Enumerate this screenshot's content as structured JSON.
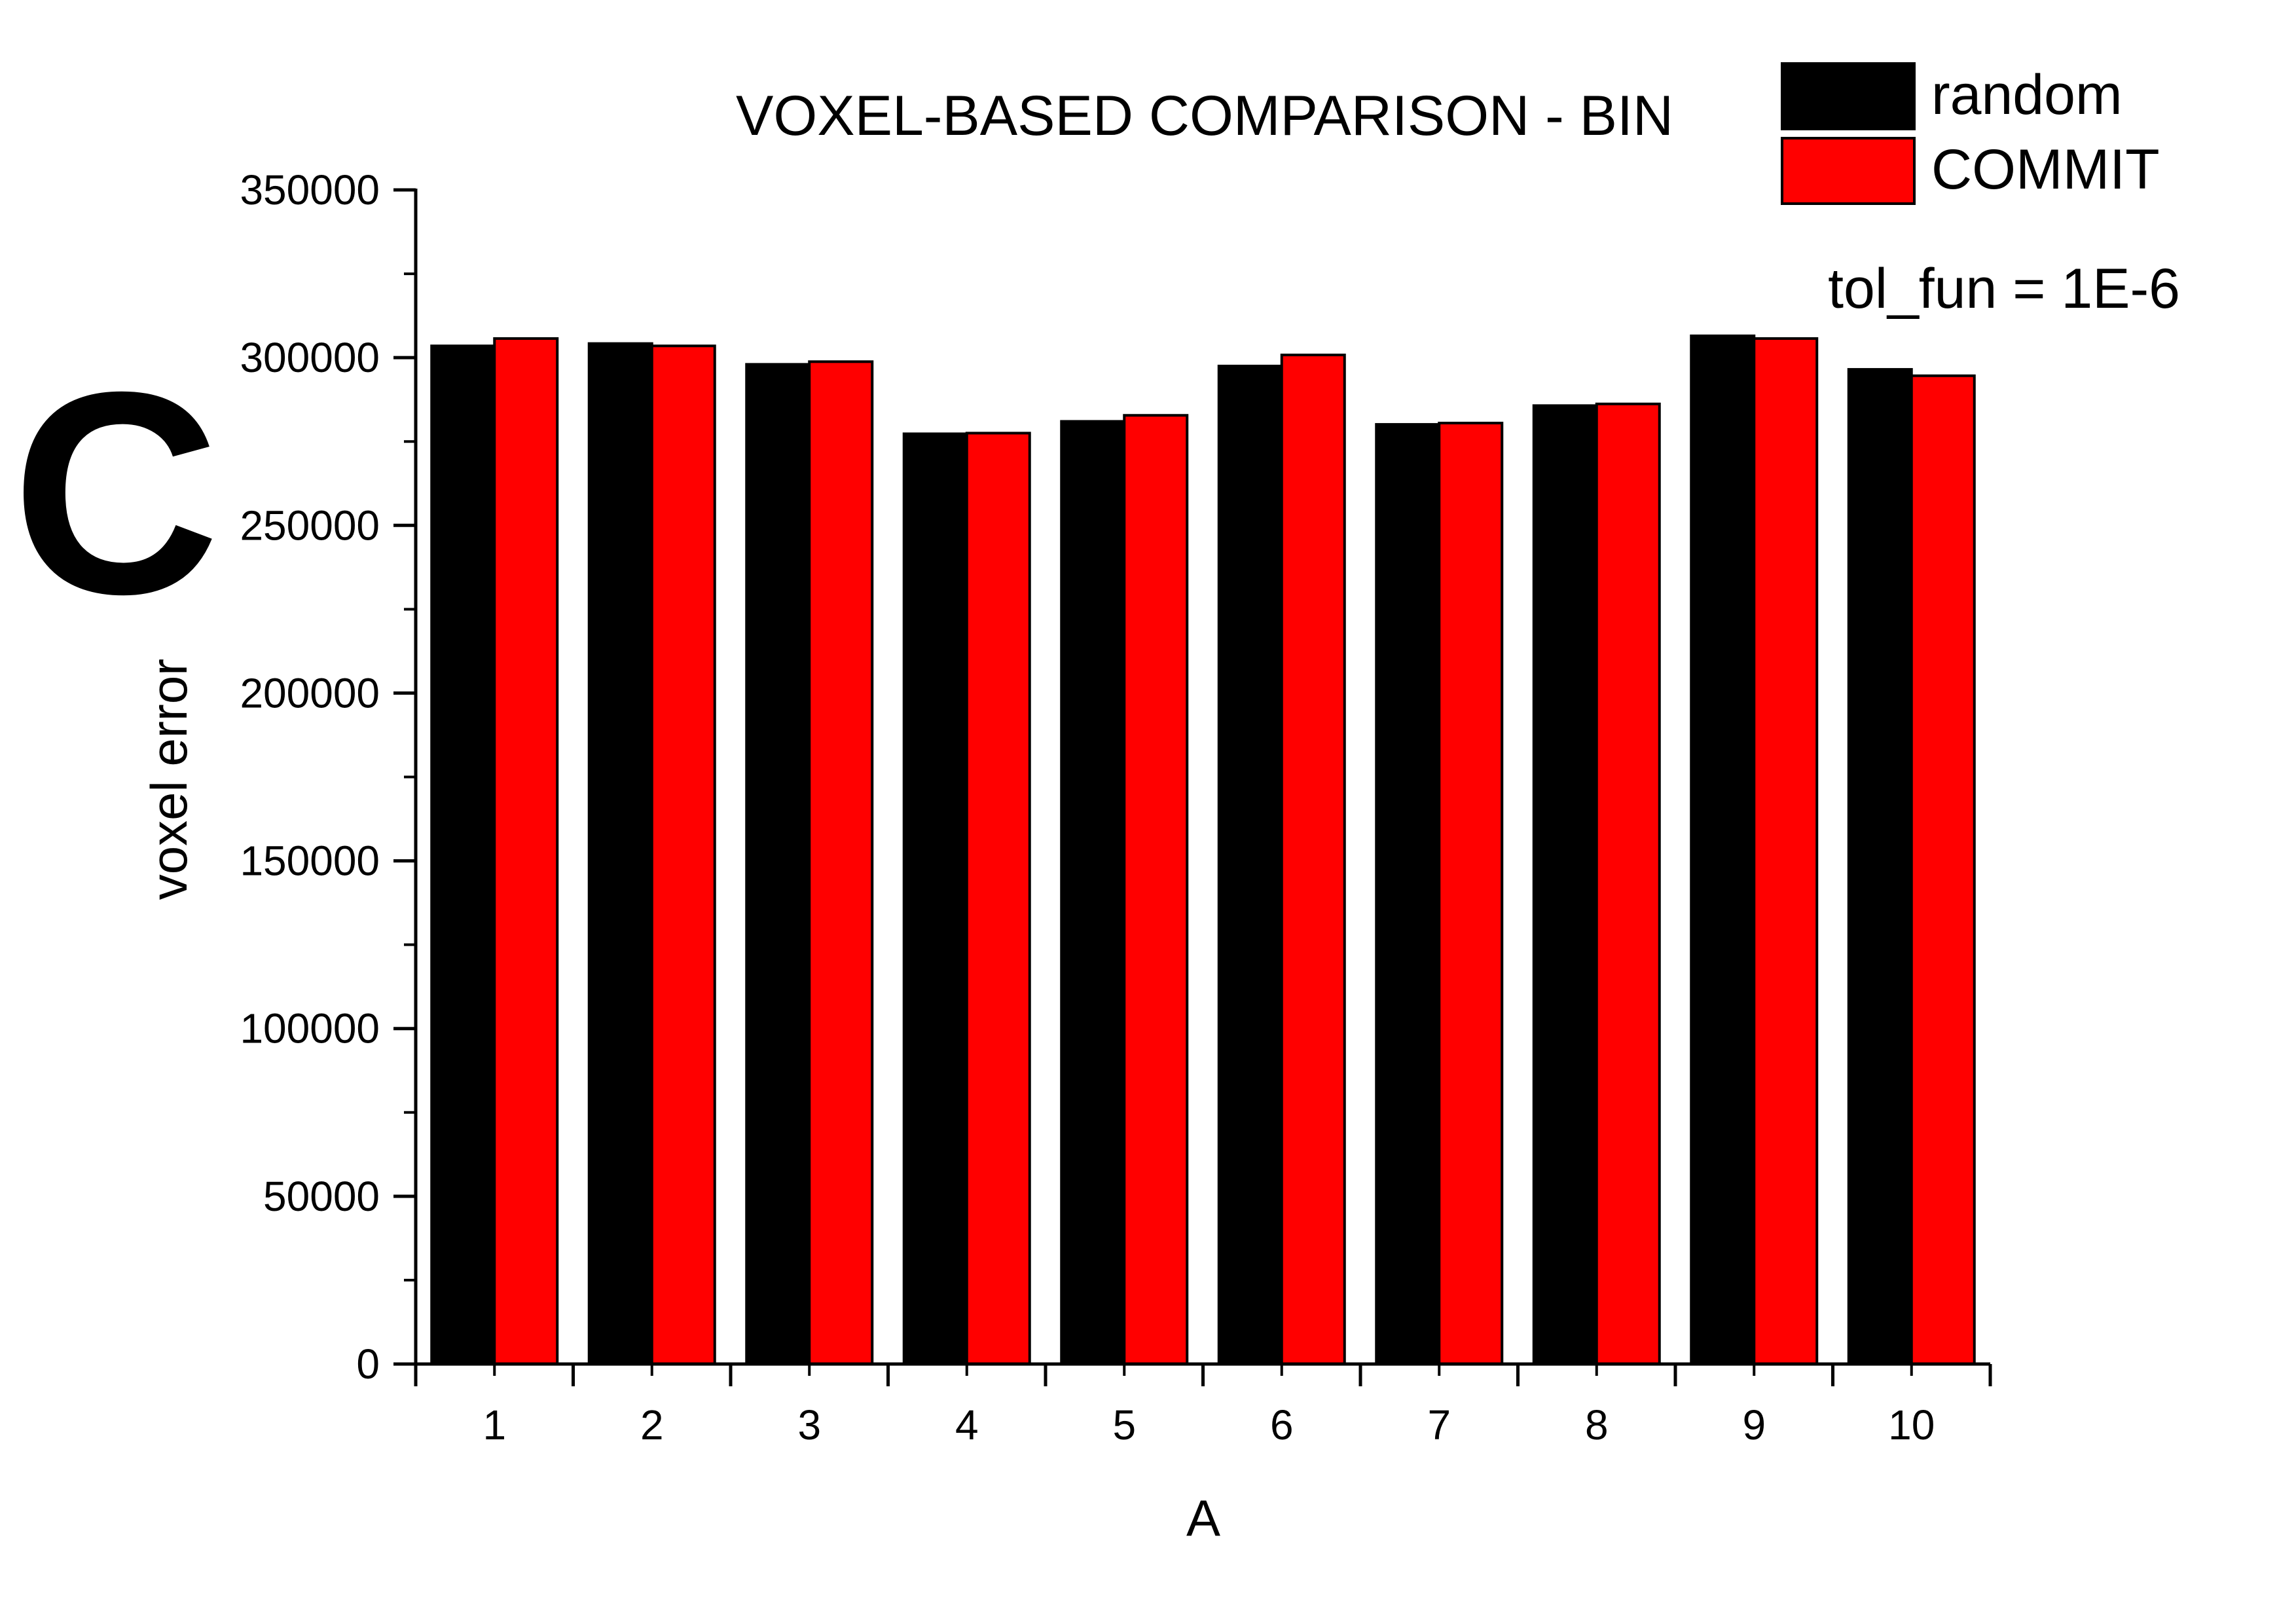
{
  "panel_letter": "C",
  "chart_data": {
    "type": "bar",
    "title": "VOXEL-BASED COMPARISON - BIN",
    "annotation": "tol_fun = 1E-6",
    "xlabel": "A",
    "ylabel": "voxel error",
    "categories": [
      "1",
      "2",
      "3",
      "4",
      "5",
      "6",
      "7",
      "8",
      "9",
      "10"
    ],
    "ylim": [
      0,
      350000
    ],
    "yticks": [
      "0",
      "50000",
      "100000",
      "150000",
      "200000",
      "250000",
      "300000",
      "350000"
    ],
    "series": [
      {
        "name": "random",
        "color": "#000000",
        "values": [
          303500,
          304200,
          298000,
          277300,
          281000,
          297500,
          280100,
          285700,
          306500,
          296500
        ]
      },
      {
        "name": "COMMIT",
        "color": "#ff0000",
        "values": [
          305700,
          303500,
          298800,
          277500,
          282800,
          300800,
          280500,
          286200,
          305700,
          294600
        ]
      }
    ],
    "legend_position": "top-right",
    "grid": false
  }
}
